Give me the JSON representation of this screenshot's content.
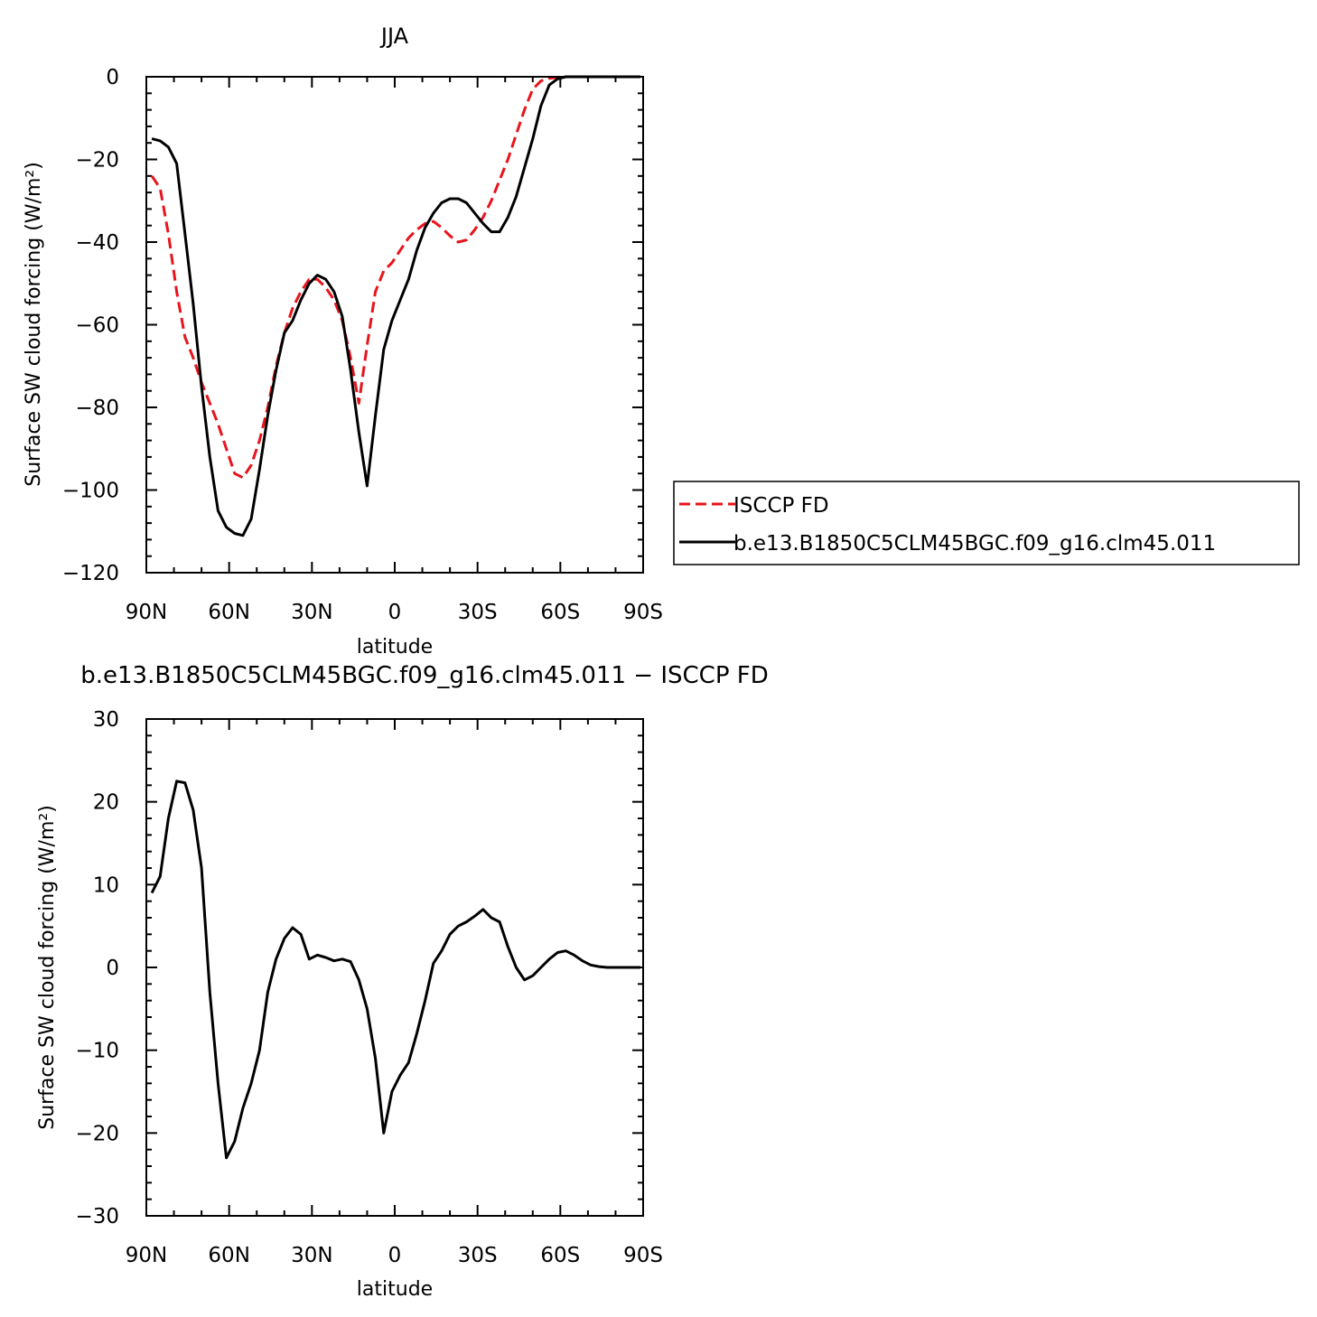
{
  "chart_data": [
    {
      "type": "line",
      "title": "JJA",
      "xlabel": "latitude",
      "ylabel": "Surface SW cloud forcing (W/m²)",
      "xlim": [
        90,
        -90
      ],
      "ylim": [
        -120,
        0
      ],
      "xticks": [
        {
          "value": 90,
          "label": "90N"
        },
        {
          "value": 60,
          "label": "60N"
        },
        {
          "value": 30,
          "label": "30N"
        },
        {
          "value": 0,
          "label": "0"
        },
        {
          "value": -30,
          "label": "30S"
        },
        {
          "value": -60,
          "label": "60S"
        },
        {
          "value": -90,
          "label": "90S"
        }
      ],
      "yticks": [
        {
          "value": 0,
          "label": "0"
        },
        {
          "value": -20,
          "label": "−20"
        },
        {
          "value": -40,
          "label": "−40"
        },
        {
          "value": -60,
          "label": "−60"
        },
        {
          "value": -80,
          "label": "−80"
        },
        {
          "value": -100,
          "label": "−100"
        },
        {
          "value": -120,
          "label": "−120"
        }
      ],
      "legend": {
        "position": "right"
      },
      "series": [
        {
          "name": "ISCCP FD",
          "color": "#e8141c",
          "dash": "dashed",
          "x": [
            88,
            85,
            82,
            79,
            76,
            73,
            70,
            67,
            64,
            61,
            58,
            55,
            52,
            49,
            46,
            43,
            40,
            37,
            34,
            31,
            28,
            25,
            22,
            19,
            16,
            13,
            10,
            7,
            4,
            1,
            -2,
            -5,
            -8,
            -11,
            -14,
            -17,
            -20,
            -23,
            -26,
            -29,
            -32,
            -35,
            -38,
            -41,
            -44,
            -47,
            -50,
            -53,
            -56,
            -59,
            -62,
            -65,
            -68,
            -71,
            -74,
            -77,
            -80,
            -83,
            -86,
            -89
          ],
          "y": [
            -24,
            -27,
            -38,
            -52,
            -63,
            -68,
            -74,
            -79,
            -84,
            -90,
            -96,
            -97,
            -94,
            -88,
            -80,
            -70,
            -62,
            -56,
            -52,
            -49,
            -49,
            -51,
            -54,
            -59,
            -68,
            -79,
            -65,
            -52,
            -47,
            -45,
            -42,
            -39,
            -37,
            -35.5,
            -35,
            -36.5,
            -38.5,
            -40,
            -39.5,
            -37,
            -34,
            -30,
            -25,
            -20,
            -14,
            -8,
            -3,
            -1,
            -0.4,
            -0.1,
            0,
            0,
            0,
            0,
            0,
            0,
            0,
            0,
            0,
            0
          ]
        },
        {
          "name": "b.e13.B1850C5CLM45BGC.f09_g16.clm45.011",
          "color": "#000000",
          "dash": "solid",
          "x": [
            88,
            85,
            82,
            79,
            76,
            73,
            70,
            67,
            64,
            61,
            58,
            55,
            52,
            49,
            46,
            43,
            40,
            37,
            34,
            31,
            28,
            25,
            22,
            19,
            16,
            13,
            10,
            7,
            4,
            1,
            -2,
            -5,
            -8,
            -11,
            -14,
            -17,
            -20,
            -23,
            -26,
            -29,
            -32,
            -35,
            -38,
            -41,
            -44,
            -47,
            -50,
            -53,
            -56,
            -59,
            -62,
            -65,
            -68,
            -71,
            -74,
            -77,
            -80,
            -83,
            -86,
            -89
          ],
          "y": [
            -15,
            -15.5,
            -17,
            -21,
            -38,
            -55,
            -75,
            -92,
            -105,
            -109,
            -110.5,
            -111,
            -107,
            -95,
            -82,
            -71,
            -62,
            -59,
            -54,
            -50,
            -48,
            -49,
            -52,
            -58,
            -71,
            -86,
            -99,
            -82,
            -66,
            -59,
            -54,
            -49,
            -42,
            -36.5,
            -33,
            -30.5,
            -29.5,
            -29.5,
            -30.5,
            -33,
            -35.5,
            -37.5,
            -37.5,
            -34,
            -29,
            -22,
            -15,
            -7,
            -2,
            -0.5,
            0,
            0,
            0,
            0,
            0,
            0,
            0,
            0,
            0,
            0
          ]
        }
      ]
    },
    {
      "type": "line",
      "title": "b.e13.B1850C5CLM45BGC.f09_g16.clm45.011 − ISCCP FD",
      "xlabel": "latitude",
      "ylabel": "Surface SW cloud forcing (W/m²)",
      "xlim": [
        90,
        -90
      ],
      "ylim": [
        -30,
        30
      ],
      "xticks": [
        {
          "value": 90,
          "label": "90N"
        },
        {
          "value": 60,
          "label": "60N"
        },
        {
          "value": 30,
          "label": "30N"
        },
        {
          "value": 0,
          "label": "0"
        },
        {
          "value": -30,
          "label": "30S"
        },
        {
          "value": -60,
          "label": "60S"
        },
        {
          "value": -90,
          "label": "90S"
        }
      ],
      "yticks": [
        {
          "value": 30,
          "label": "30"
        },
        {
          "value": 20,
          "label": "20"
        },
        {
          "value": 10,
          "label": "10"
        },
        {
          "value": 0,
          "label": "0"
        },
        {
          "value": -10,
          "label": "−10"
        },
        {
          "value": -20,
          "label": "−20"
        },
        {
          "value": -30,
          "label": "−30"
        }
      ],
      "series": [
        {
          "color": "#000000",
          "dash": "solid",
          "x": [
            88,
            85,
            82,
            79,
            76,
            73,
            70,
            67,
            64,
            61,
            58,
            55,
            52,
            49,
            46,
            43,
            40,
            37,
            34,
            31,
            28,
            25,
            22,
            19,
            16,
            13,
            10,
            7,
            4,
            1,
            -2,
            -5,
            -8,
            -11,
            -14,
            -17,
            -20,
            -23,
            -26,
            -29,
            -32,
            -35,
            -38,
            -41,
            -44,
            -47,
            -50,
            -53,
            -56,
            -59,
            -62,
            -65,
            -68,
            -71,
            -74,
            -77,
            -80,
            -83,
            -86,
            -89
          ],
          "y": [
            9,
            11,
            18,
            22.5,
            22.3,
            19,
            12,
            -3,
            -14,
            -23,
            -21,
            -17,
            -14,
            -10,
            -3,
            1,
            3.5,
            4.8,
            4,
            1,
            1.5,
            1.2,
            0.8,
            1,
            0.7,
            -1.5,
            -5,
            -11,
            -20,
            -15,
            -13,
            -11.5,
            -8,
            -4,
            0.5,
            2,
            4,
            5,
            5.5,
            6.2,
            7,
            6,
            5.5,
            2.5,
            0,
            -1.5,
            -1,
            0,
            1,
            1.8,
            2,
            1.5,
            0.8,
            0.3,
            0.1,
            0,
            0,
            0,
            0,
            0
          ]
        }
      ]
    }
  ]
}
